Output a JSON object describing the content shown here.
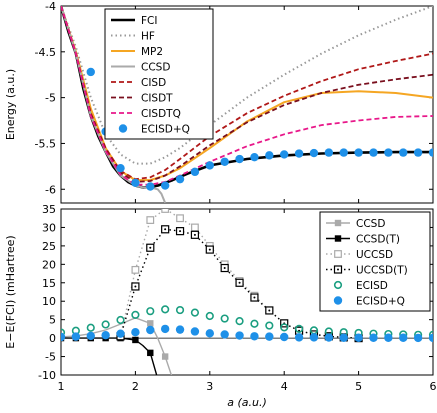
{
  "chart_data": [
    {
      "type": "line",
      "ylabel": "Energy (a.u.)",
      "xlim": [
        1,
        6
      ],
      "ylim": [
        -6.15,
        -4
      ],
      "yticks": [
        "-4",
        "-4.5",
        "-5",
        "-5.5",
        "-6"
      ],
      "ytick_values": [
        -4,
        -4.5,
        -5,
        -5.5,
        -6
      ],
      "grid": false,
      "legend_position": "top-left",
      "series": [
        {
          "name": "FCI",
          "color": "#000000",
          "style": "solid",
          "width": 2.6,
          "x": [
            1.0,
            1.1,
            1.2,
            1.3,
            1.4,
            1.5,
            1.6,
            1.7,
            1.8,
            1.9,
            2.0,
            2.1,
            2.2,
            2.3,
            2.5,
            2.7,
            3.0,
            3.5,
            4.0,
            4.5,
            5.0,
            5.5,
            6.0
          ],
          "y": [
            -4.0,
            -4.28,
            -4.52,
            -4.9,
            -5.2,
            -5.42,
            -5.59,
            -5.75,
            -5.85,
            -5.92,
            -5.96,
            -5.98,
            -5.975,
            -5.96,
            -5.9,
            -5.83,
            -5.74,
            -5.67,
            -5.63,
            -5.61,
            -5.6,
            -5.595,
            -5.595
          ]
        },
        {
          "name": "HF",
          "color": "#999999",
          "style": "dotted",
          "width": 2,
          "x": [
            1.0,
            1.2,
            1.4,
            1.6,
            1.8,
            2.0,
            2.2,
            2.4,
            2.6,
            3.0,
            3.5,
            4.0,
            4.5,
            5.0,
            5.5,
            6.0
          ],
          "y": [
            -4.0,
            -4.45,
            -5.0,
            -5.4,
            -5.62,
            -5.72,
            -5.72,
            -5.65,
            -5.55,
            -5.3,
            -5.0,
            -4.75,
            -4.52,
            -4.32,
            -4.15,
            -4.0
          ]
        },
        {
          "name": "MP2",
          "color": "#f5a623",
          "style": "solid",
          "width": 2,
          "x": [
            1.0,
            1.2,
            1.4,
            1.6,
            1.8,
            2.0,
            2.2,
            2.4,
            2.6,
            3.0,
            3.5,
            4.0,
            4.5,
            5.0,
            5.5,
            6.0
          ],
          "y": [
            -4.0,
            -4.5,
            -5.12,
            -5.55,
            -5.8,
            -5.9,
            -5.9,
            -5.85,
            -5.77,
            -5.55,
            -5.26,
            -5.05,
            -4.95,
            -4.93,
            -4.95,
            -5.0
          ]
        },
        {
          "name": "CCSD",
          "color": "#aaaaaa",
          "style": "solid",
          "width": 2,
          "x": [
            1.0,
            1.2,
            1.4,
            1.6,
            1.8,
            2.0,
            2.1,
            2.2,
            2.3,
            2.35,
            2.4
          ],
          "y": [
            -4.0,
            -4.52,
            -5.2,
            -5.59,
            -5.85,
            -5.96,
            -5.98,
            -5.98,
            -6.0,
            -6.05,
            -6.15
          ]
        },
        {
          "name": "CISD",
          "color": "#b01818",
          "style": "dashed",
          "width": 1.8,
          "x": [
            1.0,
            1.2,
            1.4,
            1.6,
            1.8,
            2.0,
            2.2,
            2.4,
            2.6,
            3.0,
            3.5,
            4.0,
            4.5,
            5.0,
            5.5,
            6.0
          ],
          "y": [
            -4.0,
            -4.52,
            -5.17,
            -5.55,
            -5.8,
            -5.89,
            -5.87,
            -5.79,
            -5.67,
            -5.42,
            -5.17,
            -4.98,
            -4.82,
            -4.69,
            -4.6,
            -4.52
          ]
        },
        {
          "name": "CISDT",
          "color": "#7a0f1e",
          "style": "dashed",
          "width": 1.8,
          "x": [
            1.0,
            1.2,
            1.4,
            1.6,
            1.8,
            2.0,
            2.2,
            2.4,
            2.6,
            3.0,
            3.5,
            4.0,
            4.5,
            5.0,
            5.5,
            6.0
          ],
          "y": [
            -4.0,
            -4.52,
            -5.18,
            -5.57,
            -5.82,
            -5.92,
            -5.91,
            -5.85,
            -5.75,
            -5.52,
            -5.27,
            -5.08,
            -4.95,
            -4.86,
            -4.8,
            -4.75
          ]
        },
        {
          "name": "CISDTQ",
          "color": "#e8188a",
          "style": "dashed",
          "width": 1.8,
          "x": [
            1.0,
            1.2,
            1.4,
            1.6,
            1.8,
            2.0,
            2.2,
            2.4,
            2.6,
            3.0,
            3.5,
            4.0,
            4.5,
            5.0,
            5.5,
            6.0
          ],
          "y": [
            -4.0,
            -4.52,
            -5.2,
            -5.58,
            -5.84,
            -5.95,
            -5.95,
            -5.92,
            -5.85,
            -5.7,
            -5.53,
            -5.4,
            -5.3,
            -5.25,
            -5.21,
            -5.2
          ]
        },
        {
          "name": "ECISD+Q",
          "color": "#1e90e8",
          "style": "marker",
          "marker": "filled-circle",
          "x": [
            1.4,
            1.6,
            1.8,
            2.0,
            2.2,
            2.4,
            2.6,
            2.8,
            3.0,
            3.2,
            3.4,
            3.6,
            3.8,
            4.0,
            4.2,
            4.4,
            4.6,
            4.8,
            5.0,
            5.2,
            5.4,
            5.6,
            5.8,
            6.0
          ],
          "y": [
            -4.72,
            -5.37,
            -5.77,
            -5.93,
            -5.97,
            -5.96,
            -5.89,
            -5.81,
            -5.74,
            -5.7,
            -5.67,
            -5.65,
            -5.63,
            -5.62,
            -5.61,
            -5.605,
            -5.6,
            -5.6,
            -5.6,
            -5.6,
            -5.6,
            -5.6,
            -5.6,
            -5.6
          ]
        }
      ]
    },
    {
      "type": "line",
      "xlabel": "a (a.u.)",
      "ylabel": "E−E(FCI) (mHartree)",
      "xlim": [
        1,
        6
      ],
      "ylim": [
        -10,
        35
      ],
      "xticks": [
        "1",
        "2",
        "3",
        "4",
        "5",
        "6"
      ],
      "xtick_values": [
        1,
        2,
        3,
        4,
        5,
        6
      ],
      "yticks": [
        "35",
        "30",
        "25",
        "20",
        "15",
        "10",
        "5",
        "0",
        "-5",
        "-10"
      ],
      "ytick_values": [
        35,
        30,
        25,
        20,
        15,
        10,
        5,
        0,
        -5,
        -10
      ],
      "grid": false,
      "legend_position": "top-right",
      "series": [
        {
          "name": "CCSD",
          "color": "#aaaaaa",
          "style": "solid",
          "marker": "filled-square",
          "x": [
            1.0,
            1.2,
            1.4,
            1.6,
            1.8,
            2.0,
            2.2,
            2.3,
            2.4,
            2.5
          ],
          "y": [
            0.3,
            0.6,
            1.2,
            2.2,
            3.8,
            5.5,
            4.0,
            0.0,
            -5.0,
            -11.0
          ],
          "marker_x": [
            2.2,
            2.4
          ],
          "marker_y": [
            4.0,
            -5.0
          ]
        },
        {
          "name": "CCSD(T)",
          "color": "#000000",
          "style": "solid",
          "marker": "filled-square",
          "x": [
            1.0,
            1.2,
            1.4,
            1.6,
            1.8,
            2.0,
            2.1,
            2.2,
            2.3
          ],
          "y": [
            0.0,
            0.0,
            0.0,
            0.0,
            0.0,
            -0.5,
            -2.0,
            -4.0,
            -11.0
          ],
          "marker_x": [
            1.0,
            1.2,
            1.4,
            1.6,
            1.8,
            2.0,
            2.2
          ],
          "marker_y": [
            0.0,
            0.0,
            0.0,
            0.0,
            0.0,
            -0.5,
            -4.0
          ]
        },
        {
          "name": "UCCSD",
          "color": "#aaaaaa",
          "style": "dotted",
          "marker": "open-square",
          "x": [
            1.8,
            2.0,
            2.2,
            2.4,
            2.6,
            2.8,
            3.0,
            3.2,
            3.4,
            3.6,
            3.8,
            4.0,
            4.2,
            4.4,
            4.6,
            4.8,
            5.0
          ],
          "y": [
            0.5,
            18.5,
            32.0,
            35.0,
            32.5,
            30.0,
            25.0,
            20.0,
            15.5,
            11.5,
            7.5,
            4.0,
            2.0,
            1.0,
            0.5,
            0.2,
            0.0
          ]
        },
        {
          "name": "UCCSD(T)",
          "color": "#000000",
          "style": "dotted",
          "marker": "open-dot-square",
          "x": [
            1.8,
            2.0,
            2.2,
            2.4,
            2.6,
            2.8,
            3.0,
            3.2,
            3.4,
            3.6,
            3.8,
            4.0,
            4.2,
            4.4,
            4.6,
            4.8,
            5.0
          ],
          "y": [
            0.5,
            14.0,
            24.5,
            29.5,
            29.0,
            28.0,
            24.0,
            19.0,
            15.0,
            11.0,
            7.5,
            4.0,
            2.0,
            1.0,
            0.5,
            0.2,
            0.0
          ]
        },
        {
          "name": "ECISD",
          "color": "#1a9e80",
          "style": "marker",
          "marker": "open-circle",
          "x": [
            1.0,
            1.2,
            1.4,
            1.6,
            1.8,
            2.0,
            2.2,
            2.4,
            2.6,
            2.8,
            3.0,
            3.2,
            3.4,
            3.6,
            3.8,
            4.0,
            4.2,
            4.4,
            4.6,
            4.8,
            5.0,
            5.2,
            5.4,
            5.6,
            5.8,
            6.0
          ],
          "y": [
            1.5,
            2.0,
            2.8,
            3.7,
            4.9,
            6.3,
            7.3,
            7.8,
            7.6,
            6.9,
            6.0,
            5.3,
            4.6,
            3.9,
            3.4,
            2.9,
            2.5,
            2.1,
            1.8,
            1.6,
            1.4,
            1.2,
            1.1,
            1.0,
            0.9,
            0.9
          ]
        },
        {
          "name": "ECISD+Q",
          "color": "#1e90e8",
          "style": "marker",
          "marker": "filled-circle",
          "x": [
            1.0,
            1.2,
            1.4,
            1.6,
            1.8,
            2.0,
            2.2,
            2.4,
            2.6,
            2.8,
            3.0,
            3.2,
            3.4,
            3.6,
            3.8,
            4.0,
            4.2,
            4.4,
            4.6,
            4.8,
            5.0,
            5.2,
            5.4,
            5.6,
            5.8,
            6.0
          ],
          "y": [
            0.3,
            0.4,
            0.6,
            0.8,
            1.2,
            1.6,
            2.2,
            2.5,
            2.3,
            1.8,
            1.3,
            1.0,
            0.7,
            0.5,
            0.4,
            0.3,
            0.2,
            0.2,
            0.15,
            0.1,
            0.1,
            0.1,
            0.1,
            0.1,
            0.05,
            0.05
          ]
        }
      ]
    }
  ]
}
